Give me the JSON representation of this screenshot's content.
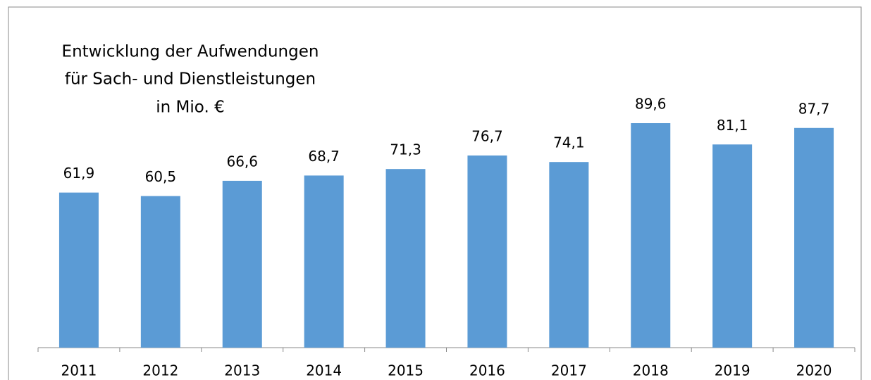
{
  "chart_data": {
    "type": "bar",
    "title_lines": [
      "Entwicklung der Aufwendungen",
      "für Sach- und Dienstleistungen",
      "in Mio. €"
    ],
    "categories": [
      "2011",
      "2012",
      "2013",
      "2014",
      "2015",
      "2016",
      "2017",
      "2018",
      "2019",
      "2020"
    ],
    "values": [
      61.9,
      60.5,
      66.6,
      68.7,
      71.3,
      76.7,
      74.1,
      89.6,
      81.1,
      87.7
    ],
    "value_labels": [
      "61,9",
      "60,5",
      "66,6",
      "68,7",
      "71,3",
      "76,7",
      "74,1",
      "89,6",
      "81,1",
      "87,7"
    ],
    "color": "#5b9bd5"
  }
}
